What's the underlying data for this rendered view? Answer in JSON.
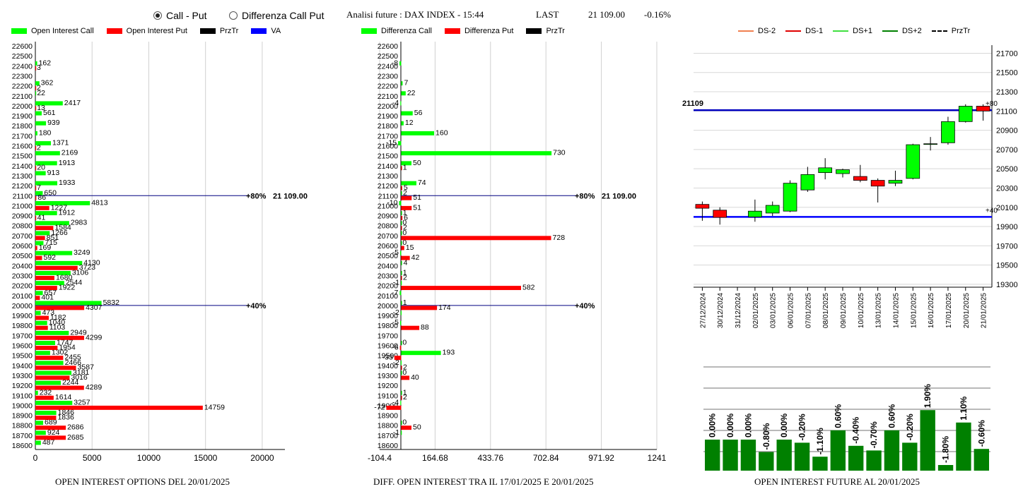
{
  "header": {
    "radio_call_put": "Call - Put",
    "radio_diff": "Differenza Call Put",
    "selected": "call_put",
    "title": "Analisi future : DAX INDEX - 15:44",
    "last_label": "LAST",
    "last_value": "21 109.00",
    "change": "-0.16%"
  },
  "legend1": [
    {
      "label": "Open Interest Call",
      "color": "#00ff00",
      "kind": "box"
    },
    {
      "label": "Open Interest Put",
      "color": "#ff0000",
      "kind": "box"
    },
    {
      "label": "PrzTr",
      "color": "#000000",
      "kind": "box"
    },
    {
      "label": "VA",
      "color": "#0000ff",
      "kind": "box"
    }
  ],
  "legend2": [
    {
      "label": "Differenza Call",
      "color": "#00ff00",
      "kind": "box"
    },
    {
      "label": "Differenza Put",
      "color": "#ff0000",
      "kind": "box"
    },
    {
      "label": "PrzTr",
      "color": "#000000",
      "kind": "box"
    }
  ],
  "legend3": [
    {
      "label": "DS-2",
      "color": "#f08050",
      "kind": "line"
    },
    {
      "label": "DS-1",
      "color": "#e00000",
      "kind": "line"
    },
    {
      "label": "DS+1",
      "color": "#40e040",
      "kind": "line"
    },
    {
      "label": "DS+2",
      "color": "#008000",
      "kind": "line"
    },
    {
      "label": "PrzTr",
      "color": "#000000",
      "kind": "dash"
    }
  ],
  "captions": {
    "oi": "OPEN INTEREST OPTIONS DEL 20/01/2025",
    "diff": "DIFF. OPEN INTEREST TRA IL 17/01/2025 E 20/01/2025",
    "fut": "OPEN INTEREST FUTURE AL 20/01/2025"
  },
  "chart_data": [
    {
      "type": "bar",
      "orientation": "horizontal",
      "strikes": [
        22600,
        22500,
        22400,
        22300,
        22200,
        22100,
        22000,
        21900,
        21800,
        21700,
        21600,
        21500,
        21400,
        21300,
        21200,
        21100,
        21000,
        20900,
        20800,
        20700,
        20600,
        20500,
        20400,
        20300,
        20200,
        20100,
        20000,
        19900,
        19800,
        19700,
        19600,
        19500,
        19400,
        19300,
        19200,
        19100,
        19000,
        18900,
        18800,
        18700,
        18600
      ],
      "series": [
        {
          "name": "Open Interest Call",
          "color": "#00ff00",
          "values": [
            0,
            0,
            162,
            0,
            362,
            22,
            2417,
            561,
            939,
            180,
            1371,
            2169,
            1913,
            913,
            1933,
            650,
            4813,
            1912,
            2983,
            1266,
            715,
            3249,
            4130,
            3106,
            2544,
            657,
            5832,
            473,
            1040,
            2949,
            1747,
            1302,
            2466,
            3181,
            2244,
            232,
            3257,
            1846,
            689,
            924,
            487
          ]
        },
        {
          "name": "Open Interest Put",
          "color": "#ff0000",
          "values": [
            0,
            0,
            3,
            0,
            2,
            0,
            13,
            0,
            0,
            0,
            2,
            0,
            20,
            0,
            7,
            86,
            1227,
            41,
            1584,
            851,
            169,
            592,
            3723,
            1680,
            1922,
            401,
            4307,
            1182,
            1103,
            4299,
            1954,
            2455,
            3587,
            3016,
            4289,
            1614,
            14759,
            1836,
            2686,
            2685,
            0
          ]
        }
      ],
      "price_lines": [
        {
          "strike": 21100,
          "label_pct": "+80%",
          "label_price": "21 109.00",
          "color": "#000080"
        },
        {
          "strike": 20000,
          "label_pct": "+40%",
          "label_price": "",
          "color": "#000080"
        }
      ],
      "x_ticks": [
        0,
        5000,
        10000,
        15000,
        20000
      ],
      "xlim": [
        0,
        22000
      ],
      "title": "OPEN INTEREST OPTIONS DEL 20/01/2025"
    },
    {
      "type": "bar",
      "orientation": "horizontal",
      "strikes": [
        22600,
        22500,
        22400,
        22300,
        22200,
        22100,
        22000,
        21900,
        21800,
        21700,
        21600,
        21500,
        21400,
        21300,
        21200,
        21100,
        21000,
        20900,
        20800,
        20700,
        20600,
        20500,
        20400,
        20300,
        20200,
        20100,
        20000,
        19900,
        19800,
        19700,
        19600,
        19500,
        19400,
        19300,
        19200,
        19100,
        19000,
        18900,
        18800,
        18700,
        18600
      ],
      "series": [
        {
          "name": "Differenza Call",
          "color": "#00ff00",
          "values": [
            0,
            0,
            -8,
            0,
            7,
            22,
            -4,
            56,
            12,
            160,
            -15,
            730,
            50,
            0,
            74,
            2,
            -10,
            1,
            0,
            0,
            0,
            -5,
            4,
            1,
            -1,
            -7,
            1,
            -2,
            -5,
            0,
            0,
            193,
            -2,
            0,
            0,
            1,
            -4,
            0,
            0,
            -1,
            0
          ]
        },
        {
          "name": "Differenza Put",
          "color": "#ff0000",
          "values": [
            0,
            0,
            0,
            0,
            0,
            0,
            0,
            0,
            0,
            0,
            0,
            0,
            1,
            0,
            5,
            51,
            51,
            6,
            2,
            728,
            15,
            42,
            0,
            2,
            582,
            0,
            174,
            0,
            88,
            0,
            -6,
            -33,
            2,
            40,
            0,
            2,
            -72,
            0,
            50,
            0,
            0
          ]
        }
      ],
      "price_lines": [
        {
          "strike": 21100,
          "label_pct": "+80%",
          "label_price": "21 109.00",
          "color": "#000080"
        },
        {
          "strike": 20000,
          "label_pct": "+40%",
          "label_price": "",
          "color": "#000080"
        }
      ],
      "x_ticks": [
        "-104.4",
        "164.68",
        "433.76",
        "702.84",
        "971.92",
        "1241"
      ],
      "xlim": [
        -104.4,
        1241
      ],
      "title": "DIFF. OPEN INTEREST TRA IL 17/01/2025 E 20/01/2025"
    },
    {
      "type": "candlestick",
      "dates": [
        "27/12/2024",
        "30/12/2024",
        "31/12/2024",
        "02/01/2025",
        "03/01/2025",
        "06/01/2025",
        "07/01/2025",
        "08/01/2025",
        "09/01/2025",
        "10/01/2025",
        "13/01/2025",
        "14/01/2025",
        "15/01/2025",
        "16/01/2025",
        "17/01/2025",
        "20/01/2025",
        "21/01/2025"
      ],
      "ohlc": [
        [
          20130,
          20160,
          19960,
          20090
        ],
        [
          20070,
          20100,
          19920,
          19995
        ],
        null,
        [
          20000,
          20180,
          19950,
          20060
        ],
        [
          20040,
          20160,
          20010,
          20120
        ],
        [
          20060,
          20380,
          20050,
          20350
        ],
        [
          20280,
          20520,
          20260,
          20440
        ],
        [
          20460,
          20610,
          20390,
          20510
        ],
        [
          20450,
          20500,
          20410,
          20490
        ],
        [
          20420,
          20540,
          20360,
          20380
        ],
        [
          20380,
          20400,
          20150,
          20320
        ],
        [
          20350,
          20480,
          20320,
          20380
        ],
        [
          20400,
          20760,
          20390,
          20750
        ],
        [
          20760,
          20830,
          20690,
          20760
        ],
        [
          20770,
          21040,
          20750,
          20990
        ],
        [
          20990,
          21170,
          20980,
          21150
        ],
        [
          21150,
          21170,
          21000,
          21100
        ]
      ],
      "hlines": [
        {
          "value": 21109,
          "label": "21109",
          "tag": "+80",
          "color": "#0000c0"
        },
        {
          "value": 20000,
          "label": "",
          "tag": "+40",
          "color": "#0000ff"
        }
      ],
      "y_ticks": [
        21700,
        21500,
        21300,
        21100,
        20900,
        20700,
        20500,
        20300,
        20100,
        19900,
        19700,
        19500,
        19300
      ],
      "ylim": [
        19270,
        21740
      ]
    },
    {
      "type": "bar",
      "categories": [
        "27/12/2024",
        "30/12/2024",
        "31/12/2024",
        "02/01/2025",
        "03/01/2025",
        "06/01/2025",
        "07/01/2025",
        "08/01/2025",
        "09/01/2025",
        "10/01/2025",
        "13/01/2025",
        "14/01/2025",
        "15/01/2025",
        "16/01/2025",
        "17/01/2025",
        "20/01/2025"
      ],
      "values": [
        0.0,
        0.0,
        0.0,
        -0.8,
        0.0,
        -0.2,
        -1.1,
        0.6,
        -0.4,
        -0.7,
        0.6,
        -0.2,
        1.9,
        -1.8,
        1.1,
        -0.6
      ],
      "labels": [
        "0.00%",
        "0.00%",
        "0.00%",
        "-0.80%",
        "0.00%",
        "-0.20%",
        "-1.10%",
        "0.60%",
        "-0.40%",
        "-0.70%",
        "0.60%",
        "-0.20%",
        "1.90%",
        "-1.80%",
        "1.10%",
        "-0.60%"
      ],
      "color": "#008000",
      "title": "OPEN INTEREST FUTURE AL 20/01/2025"
    }
  ]
}
